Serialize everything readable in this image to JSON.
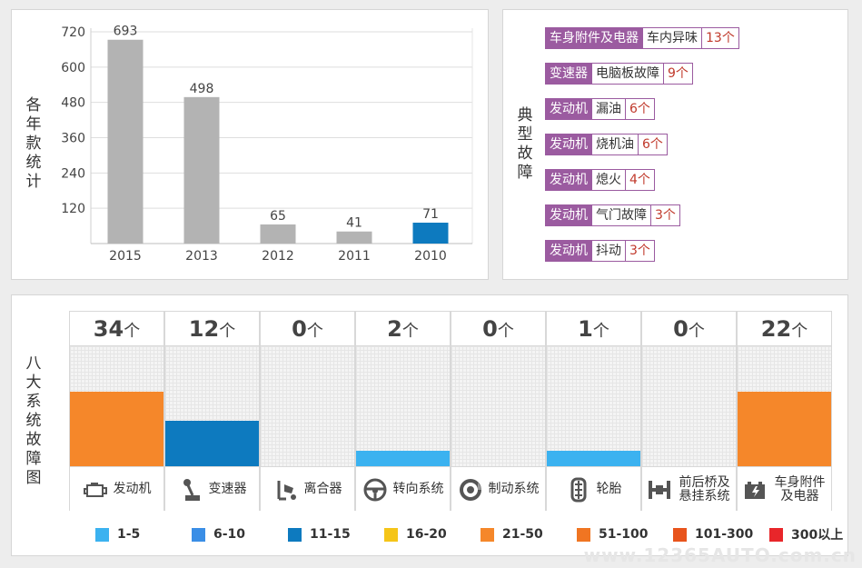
{
  "year_panel": {
    "vertical_label": "各年款统计"
  },
  "fault_panel": {
    "vertical_label": "典型故障",
    "items": [
      {
        "category": "车身附件及电器",
        "fault": "车内异味",
        "count": "13个"
      },
      {
        "category": "变速器",
        "fault": "电脑板故障",
        "count": "9个"
      },
      {
        "category": "发动机",
        "fault": "漏油",
        "count": "6个"
      },
      {
        "category": "发动机",
        "fault": "烧机油",
        "count": "6个"
      },
      {
        "category": "发动机",
        "fault": "熄火",
        "count": "4个"
      },
      {
        "category": "发动机",
        "fault": "气门故障",
        "count": "3个"
      },
      {
        "category": "发动机",
        "fault": "抖动",
        "count": "3个"
      }
    ]
  },
  "system_panel": {
    "vertical_label": "八大系统故障图",
    "unit": "个",
    "systems": [
      {
        "name": "发动机",
        "count": "34",
        "icon": "engine-icon",
        "level": 0.62,
        "color": "#f5872a"
      },
      {
        "name": "变速器",
        "count": "12",
        "icon": "gear-lever-icon",
        "level": 0.38,
        "color": "#0d7abf"
      },
      {
        "name": "离合器",
        "count": "0",
        "icon": "clutch-pedal-icon",
        "level": 0,
        "color": "#3bb2f0"
      },
      {
        "name": "转向系统",
        "count": "2",
        "icon": "steering-wheel-icon",
        "level": 0.13,
        "color": "#3bb2f0"
      },
      {
        "name": "制动系统",
        "count": "0",
        "icon": "brake-disc-icon",
        "level": 0,
        "color": "#3bb2f0"
      },
      {
        "name": "轮胎",
        "count": "1",
        "icon": "tire-icon",
        "level": 0.13,
        "color": "#3bb2f0"
      },
      {
        "name": "前后桥及悬挂系统",
        "count": "0",
        "icon": "axle-icon",
        "level": 0,
        "color": "#3bb2f0"
      },
      {
        "name": "车身附件及电器",
        "count": "22",
        "icon": "battery-icon",
        "level": 0.62,
        "color": "#f5872a"
      }
    ],
    "legend": [
      {
        "label": "1-5",
        "color": "#3bb2f0"
      },
      {
        "label": "6-10",
        "color": "#3a8ee6"
      },
      {
        "label": "11-15",
        "color": "#0d7abf"
      },
      {
        "label": "16-20",
        "color": "#f5c518"
      },
      {
        "label": "21-50",
        "color": "#f5872a"
      },
      {
        "label": "51-100",
        "color": "#f07522"
      },
      {
        "label": "101-300",
        "color": "#e8541c"
      },
      {
        "label": "300以上",
        "color": "#e8262a"
      }
    ]
  },
  "watermark": "www.12365AUTO.com.cn",
  "chart_data": {
    "type": "bar",
    "categories": [
      "2015",
      "2013",
      "2012",
      "2011",
      "2010"
    ],
    "values": [
      693,
      498,
      65,
      41,
      71
    ],
    "bar_colors": [
      "#b3b3b3",
      "#b3b3b3",
      "#b3b3b3",
      "#b3b3b3",
      "#0d7abf"
    ],
    "yticks": [
      120,
      240,
      360,
      480,
      600,
      720
    ],
    "ylim": [
      0,
      720
    ],
    "grid": true,
    "xlabel": "",
    "ylabel": "各年款统计"
  }
}
